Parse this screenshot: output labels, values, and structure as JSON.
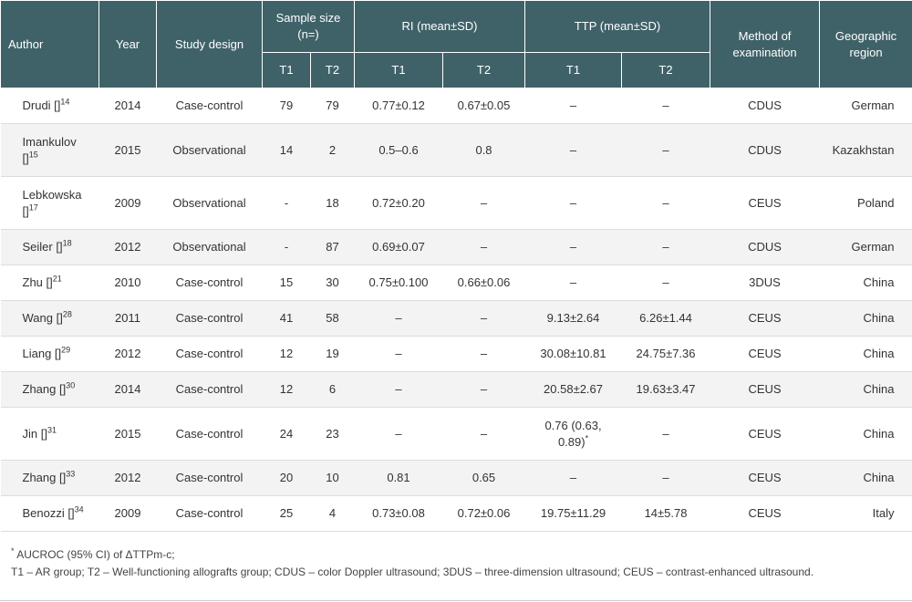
{
  "headers": {
    "author": "Author",
    "year": "Year",
    "design": "Study design",
    "sample": "Sample size (n=)",
    "ri": "RI (mean±SD)",
    "ttp": "TTP (mean±SD)",
    "method": "Method of examination",
    "region": "Geographic region",
    "t1": "T1",
    "t2": "T2"
  },
  "rows": [
    {
      "author": "Drudi []",
      "ref": "14",
      "year": "2014",
      "design": "Case-control",
      "s1": "79",
      "s2": "79",
      "ri1": "0.77±0.12",
      "ri2": "0.67±0.05",
      "ttp1": "–",
      "ttp1_sup": "",
      "ttp2": "–",
      "method": "CDUS",
      "region": "German"
    },
    {
      "author": "Imankulov []",
      "ref": "15",
      "year": "2015",
      "design": "Observational",
      "s1": "14",
      "s2": "2",
      "ri1": "0.5–0.6",
      "ri2": "0.8",
      "ttp1": "–",
      "ttp1_sup": "",
      "ttp2": "–",
      "method": "CDUS",
      "region": "Kazakhstan"
    },
    {
      "author": "Lebkowska []",
      "ref": "17",
      "year": "2009",
      "design": "Observational",
      "s1": "-",
      "s2": "18",
      "ri1": "0.72±0.20",
      "ri2": "–",
      "ttp1": "–",
      "ttp1_sup": "",
      "ttp2": "–",
      "method": "CEUS",
      "region": "Poland"
    },
    {
      "author": "Seiler []",
      "ref": "18",
      "year": "2012",
      "design": "Observational",
      "s1": "-",
      "s2": "87",
      "ri1": "0.69±0.07",
      "ri2": "–",
      "ttp1": "–",
      "ttp1_sup": "",
      "ttp2": "–",
      "method": "CDUS",
      "region": "German"
    },
    {
      "author": "Zhu []",
      "ref": "21",
      "year": "2010",
      "design": "Case-control",
      "s1": "15",
      "s2": "30",
      "ri1": "0.75±0.100",
      "ri2": "0.66±0.06",
      "ttp1": "–",
      "ttp1_sup": "",
      "ttp2": "–",
      "method": "3DUS",
      "region": "China"
    },
    {
      "author": "Wang []",
      "ref": "28",
      "year": "2011",
      "design": "Case-control",
      "s1": "41",
      "s2": "58",
      "ri1": "–",
      "ri2": "–",
      "ttp1": "9.13±2.64",
      "ttp1_sup": "",
      "ttp2": "6.26±1.44",
      "method": "CEUS",
      "region": "China"
    },
    {
      "author": "Liang []",
      "ref": "29",
      "year": "2012",
      "design": "Case-control",
      "s1": "12",
      "s2": "19",
      "ri1": "–",
      "ri2": "–",
      "ttp1": "30.08±10.81",
      "ttp1_sup": "",
      "ttp2": "24.75±7.36",
      "method": "CEUS",
      "region": "China"
    },
    {
      "author": "Zhang []",
      "ref": "30",
      "year": "2014",
      "design": "Case-control",
      "s1": "12",
      "s2": "6",
      "ri1": "–",
      "ri2": "–",
      "ttp1": "20.58±2.67",
      "ttp1_sup": "",
      "ttp2": "19.63±3.47",
      "method": "CEUS",
      "region": "China"
    },
    {
      "author": "Jin []",
      "ref": "31",
      "year": "2015",
      "design": "Case-control",
      "s1": "24",
      "s2": "23",
      "ri1": "–",
      "ri2": "–",
      "ttp1": "0.76 (0.63, 0.89)",
      "ttp1_sup": "*",
      "ttp2": "–",
      "method": "CEUS",
      "region": "China"
    },
    {
      "author": "Zhang []",
      "ref": "33",
      "year": "2012",
      "design": "Case-control",
      "s1": "20",
      "s2": "10",
      "ri1": "0.81",
      "ri2": "0.65",
      "ttp1": "–",
      "ttp1_sup": "",
      "ttp2": "–",
      "method": "CEUS",
      "region": "China"
    },
    {
      "author": "Benozzi []",
      "ref": "34",
      "year": "2009",
      "design": "Case-control",
      "s1": "25",
      "s2": "4",
      "ri1": "0.73±0.08",
      "ri2": "0.72±0.06",
      "ttp1": "19.75±11.29",
      "ttp1_sup": "",
      "ttp2": "14±5.78",
      "method": "CEUS",
      "region": "Italy"
    }
  ],
  "footnotes": {
    "star": "*",
    "note1": " AUCROC (95% CI) of ΔTTPm-c;",
    "note2": "T1 – AR group; T2 – Well-functioning allografts group; CDUS – color Doppler ultrasound; 3DUS – three-dimension ultrasound; CEUS – contrast-enhanced ultrasound."
  }
}
